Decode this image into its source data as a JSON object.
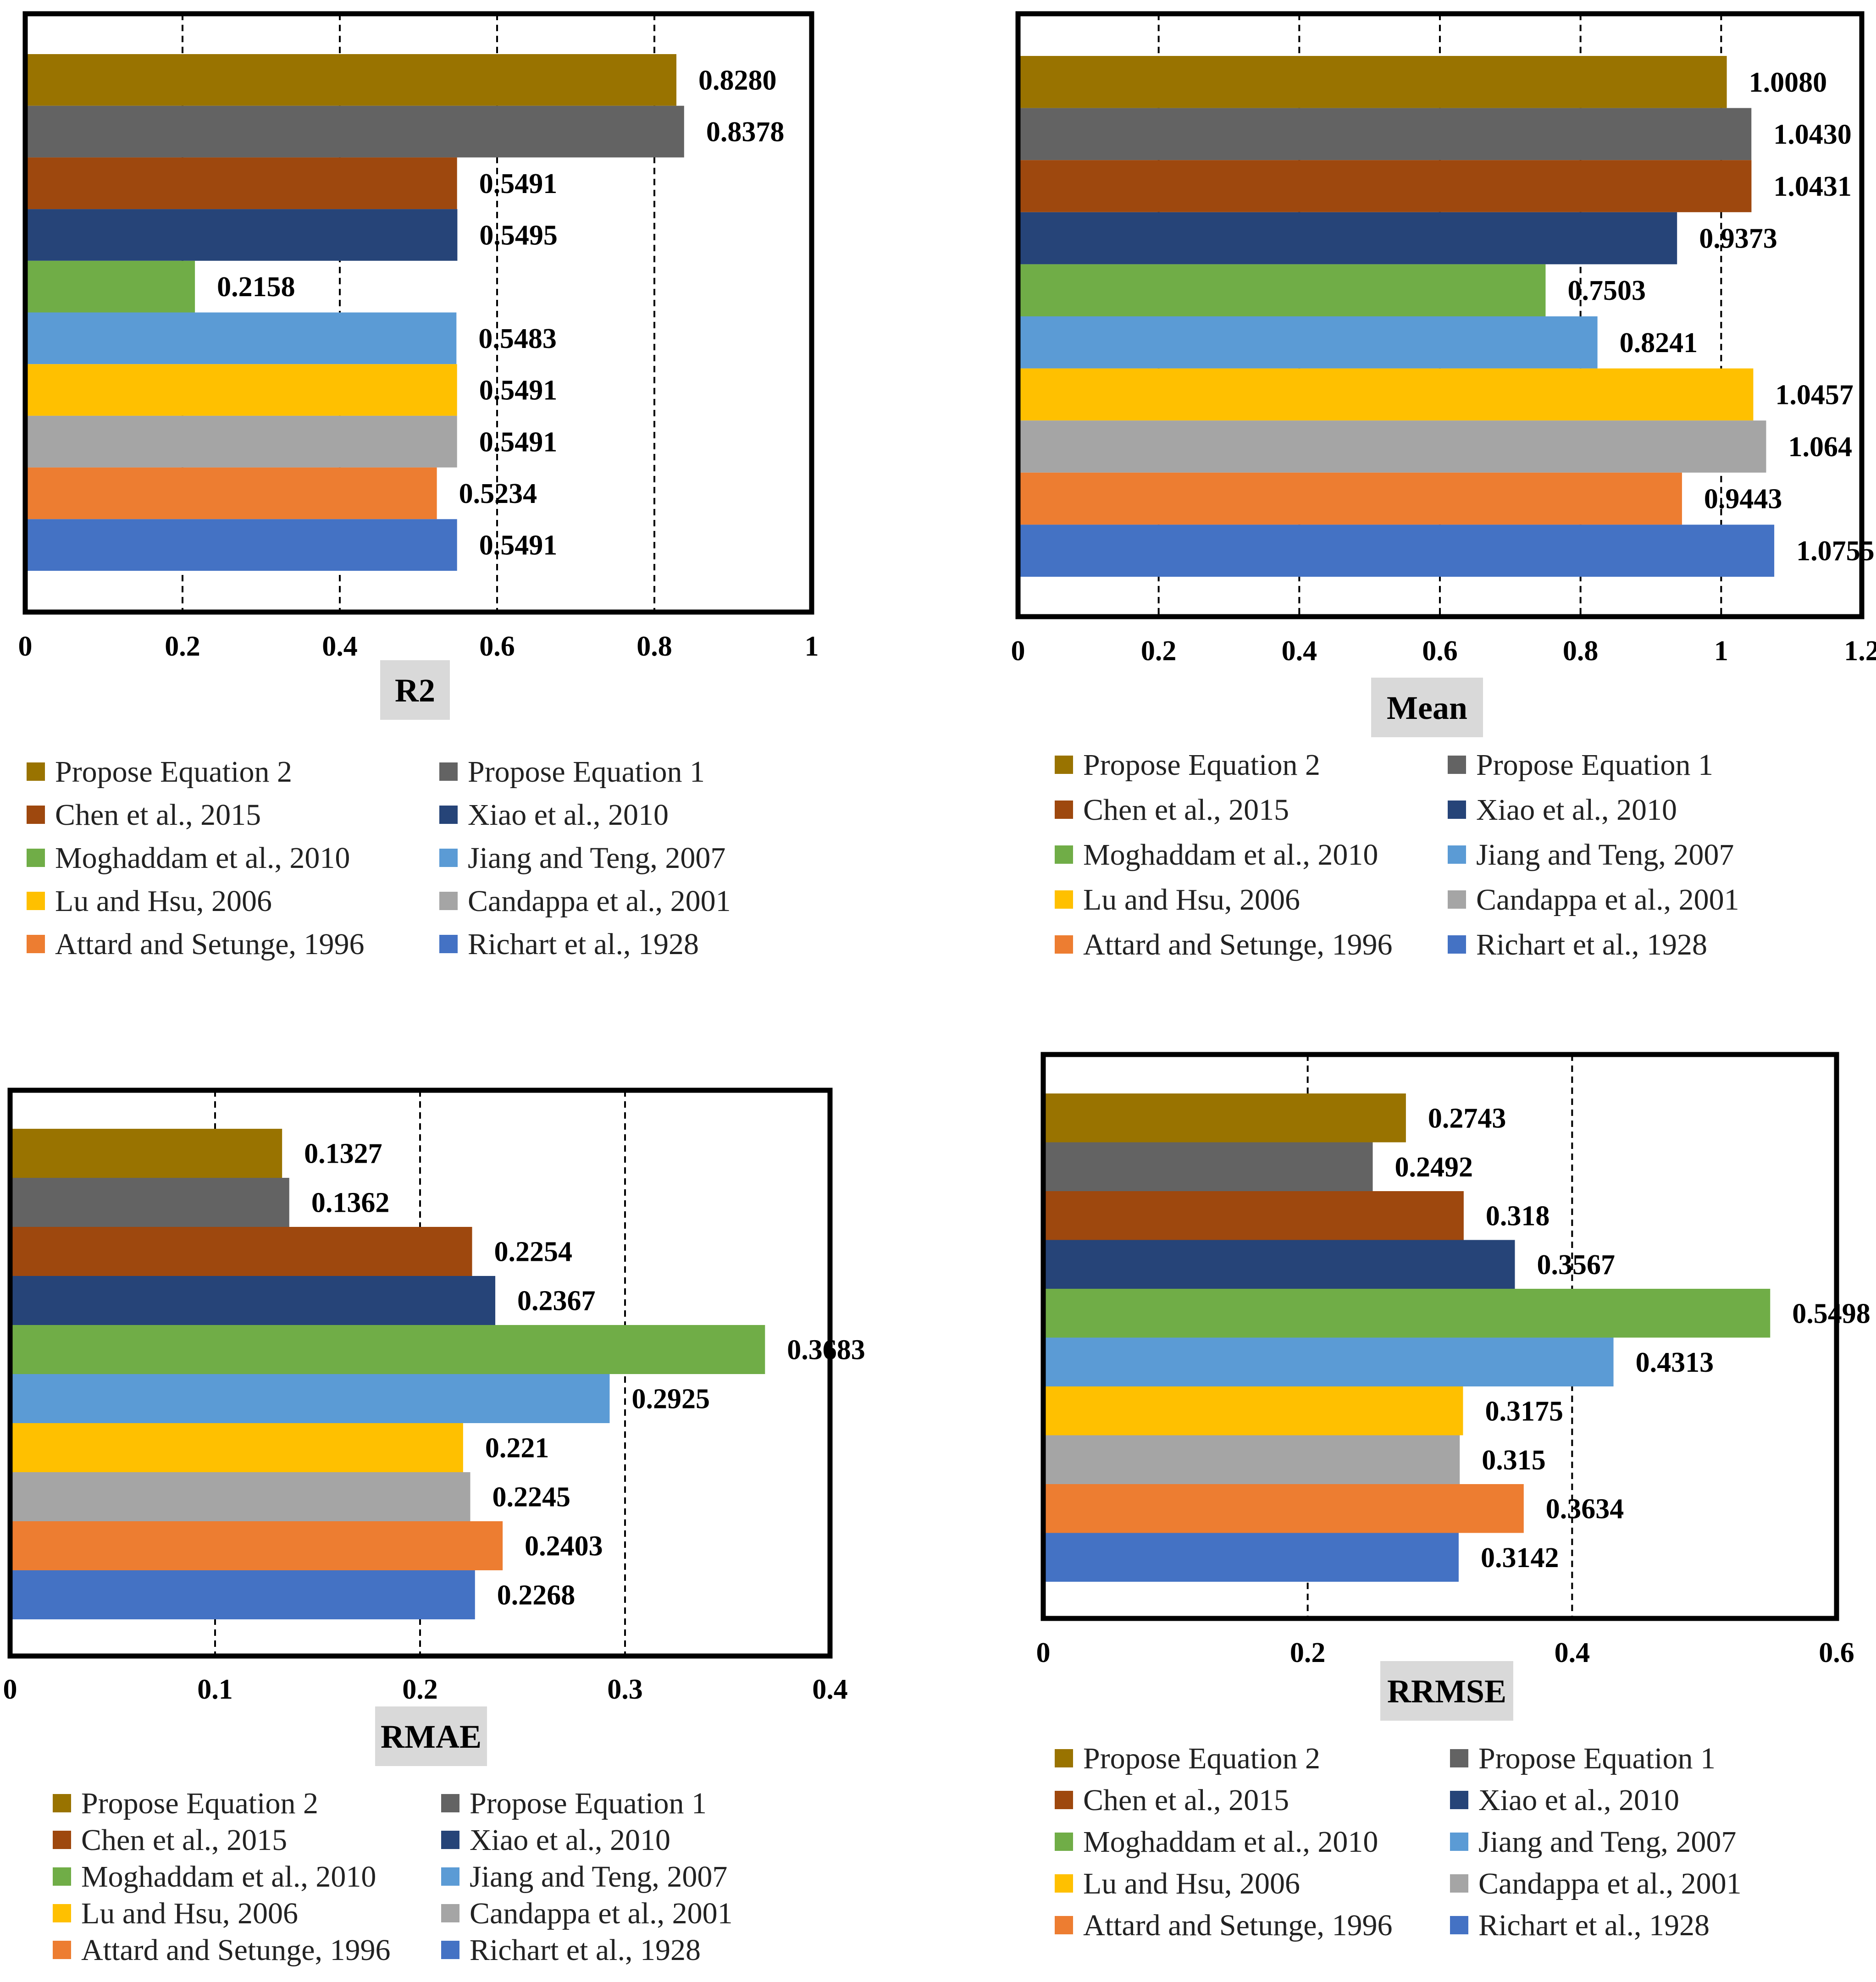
{
  "chart_data": [
    {
      "type": "bar",
      "orientation": "horizontal",
      "categories": [
        "Propose Equation 2",
        "Propose Equation 1",
        "Chen et al., 2015",
        "Xiao et al., 2010",
        "Moghaddam et al., 2010",
        "Jiang and Teng, 2007",
        "Lu and Hsu, 2006",
        "Candappa et al., 2001",
        "Attard and Setunge, 1996",
        "Richart et al., 1928"
      ],
      "values": [
        0.828,
        0.8378,
        0.5491,
        0.5495,
        0.2158,
        0.5483,
        0.5491,
        0.5491,
        0.5234,
        0.5491
      ],
      "labels": [
        "0.8280",
        "0.8378",
        "0.5491",
        "0.5495",
        "0.2158",
        "0.5483",
        "0.5491",
        "0.5491",
        "0.5234",
        "0.5491"
      ],
      "xlim": [
        0,
        1
      ],
      "xticks": [
        "0",
        "0.2",
        "0.4",
        "0.6",
        "0.8",
        "1"
      ],
      "xlabel": "R2",
      "legend": "bottom"
    },
    {
      "type": "bar",
      "orientation": "horizontal",
      "categories": [
        "Propose Equation 2",
        "Propose Equation 1",
        "Chen et al., 2015",
        "Xiao et al., 2010",
        "Moghaddam et al., 2010",
        "Jiang and Teng, 2007",
        "Lu and Hsu, 2006",
        "Candappa et al., 2001",
        "Attard and Setunge, 1996",
        "Richart et al., 1928"
      ],
      "values": [
        1.008,
        1.043,
        1.0431,
        0.9373,
        0.7503,
        0.8241,
        1.0457,
        1.064,
        0.9443,
        1.0755
      ],
      "labels": [
        "1.0080",
        "1.0430",
        "1.0431",
        "0.9373",
        "0.7503",
        "0.8241",
        "1.0457",
        "1.064",
        "0.9443",
        "1.0755"
      ],
      "xlim": [
        0,
        1.2
      ],
      "xticks": [
        "0",
        "0.2",
        "0.4",
        "0.6",
        "0.8",
        "1",
        "1.2"
      ],
      "xlabel": "Mean",
      "legend": "bottom"
    },
    {
      "type": "bar",
      "orientation": "horizontal",
      "categories": [
        "Propose Equation 2",
        "Propose Equation 1",
        "Chen et al., 2015",
        "Xiao et al., 2010",
        "Moghaddam et al., 2010",
        "Jiang and Teng, 2007",
        "Lu and Hsu, 2006",
        "Candappa et al., 2001",
        "Attard and Setunge, 1996",
        "Richart et al., 1928"
      ],
      "values": [
        0.1327,
        0.1362,
        0.2254,
        0.2367,
        0.3683,
        0.2925,
        0.221,
        0.2245,
        0.2403,
        0.2268
      ],
      "labels": [
        "0.1327",
        "0.1362",
        "0.2254",
        "0.2367",
        "0.3683",
        "0.2925",
        "0.221",
        "0.2245",
        "0.2403",
        "0.2268"
      ],
      "xlim": [
        0,
        0.4
      ],
      "xticks": [
        "0",
        "0.1",
        "0.2",
        "0.3",
        "0.4"
      ],
      "xlabel": "RMAE",
      "legend": "bottom"
    },
    {
      "type": "bar",
      "orientation": "horizontal",
      "categories": [
        "Propose Equation 2",
        "Propose Equation 1",
        "Chen et al., 2015",
        "Xiao et al., 2010",
        "Moghaddam et al., 2010",
        "Jiang and Teng, 2007",
        "Lu and Hsu, 2006",
        "Candappa et al., 2001",
        "Attard and Setunge, 1996",
        "Richart et al., 1928"
      ],
      "values": [
        0.2743,
        0.2492,
        0.318,
        0.3567,
        0.5498,
        0.4313,
        0.3175,
        0.315,
        0.3634,
        0.3142
      ],
      "labels": [
        "0.2743",
        "0.2492",
        "0.318",
        "0.3567",
        "0.5498",
        "0.4313",
        "0.3175",
        "0.315",
        "0.3634",
        "0.3142"
      ],
      "xlim": [
        0,
        0.6
      ],
      "xticks": [
        "0",
        "0.2",
        "0.4",
        "0.6"
      ],
      "xlabel": "RRMSE",
      "legend": "bottom"
    }
  ],
  "series_colors": [
    "#997300",
    "#636363",
    "#9E480E",
    "#264478",
    "#70AD47",
    "#5B9BD5",
    "#FFC000",
    "#A5A5A5",
    "#ED7D31",
    "#4472C4"
  ],
  "axis_title_bg": "#D9D9D9"
}
